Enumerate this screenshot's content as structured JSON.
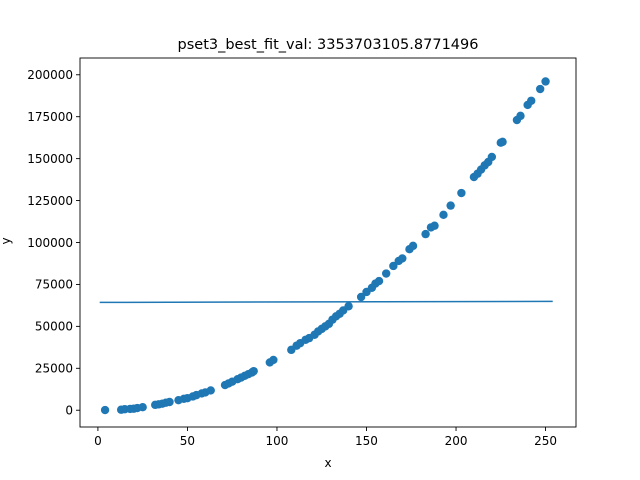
{
  "chart_data": {
    "type": "scatter",
    "title": "pset3_best_fit_val: 3353703105.8771496",
    "xlabel": "x",
    "ylabel": "y",
    "xlim": [
      -10,
      267
    ],
    "ylim": [
      -10000,
      210000
    ],
    "xticks": [
      0,
      50,
      100,
      150,
      200,
      250
    ],
    "yticks": [
      0,
      25000,
      50000,
      75000,
      100000,
      125000,
      150000,
      175000,
      200000
    ],
    "grid": false,
    "colors": {
      "series": "#1f77b4",
      "axes": "#000000",
      "background": "#ffffff"
    },
    "series": [
      {
        "type": "scatter",
        "points": [
          [
            4,
            100
          ],
          [
            13,
            300
          ],
          [
            15,
            600
          ],
          [
            18,
            800
          ],
          [
            20,
            900
          ],
          [
            22,
            1300
          ],
          [
            25,
            1800
          ],
          [
            32,
            3200
          ],
          [
            34,
            3500
          ],
          [
            36,
            3900
          ],
          [
            38,
            4500
          ],
          [
            40,
            4900
          ],
          [
            45,
            6000
          ],
          [
            48,
            6800
          ],
          [
            50,
            7200
          ],
          [
            53,
            8200
          ],
          [
            55,
            9000
          ],
          [
            58,
            10000
          ],
          [
            60,
            10600
          ],
          [
            63,
            11800
          ],
          [
            71,
            15000
          ],
          [
            73,
            16000
          ],
          [
            75,
            17000
          ],
          [
            78,
            18500
          ],
          [
            80,
            19500
          ],
          [
            82,
            20500
          ],
          [
            84,
            21500
          ],
          [
            86,
            22500
          ],
          [
            87,
            23300
          ],
          [
            96,
            28500
          ],
          [
            98,
            30000
          ],
          [
            108,
            36000
          ],
          [
            111,
            38500
          ],
          [
            113,
            40000
          ],
          [
            116,
            42000
          ],
          [
            118,
            43000
          ],
          [
            121,
            45000
          ],
          [
            123,
            47000
          ],
          [
            125,
            48500
          ],
          [
            127,
            50000
          ],
          [
            129,
            51500
          ],
          [
            131,
            54000
          ],
          [
            133,
            56000
          ],
          [
            135,
            57500
          ],
          [
            137,
            59500
          ],
          [
            140,
            62000
          ],
          [
            147,
            67500
          ],
          [
            150,
            70500
          ],
          [
            153,
            73000
          ],
          [
            155,
            75500
          ],
          [
            157,
            77000
          ],
          [
            161,
            81500
          ],
          [
            165,
            86000
          ],
          [
            168,
            89000
          ],
          [
            170,
            90500
          ],
          [
            174,
            96000
          ],
          [
            176,
            98000
          ],
          [
            183,
            105000
          ],
          [
            186,
            109000
          ],
          [
            188,
            110000
          ],
          [
            193,
            116500
          ],
          [
            197,
            122000
          ],
          [
            203,
            129500
          ],
          [
            210,
            139000
          ],
          [
            212,
            141000
          ],
          [
            214,
            143500
          ],
          [
            216,
            146000
          ],
          [
            218,
            148000
          ],
          [
            220,
            151000
          ],
          [
            225,
            159500
          ],
          [
            226,
            160000
          ],
          [
            234,
            173000
          ],
          [
            236,
            175500
          ],
          [
            240,
            182000
          ],
          [
            242,
            184500
          ],
          [
            247,
            191500
          ],
          [
            250,
            196000
          ]
        ]
      },
      {
        "type": "line",
        "points": [
          [
            1,
            64300
          ],
          [
            254,
            64900
          ]
        ]
      }
    ]
  }
}
